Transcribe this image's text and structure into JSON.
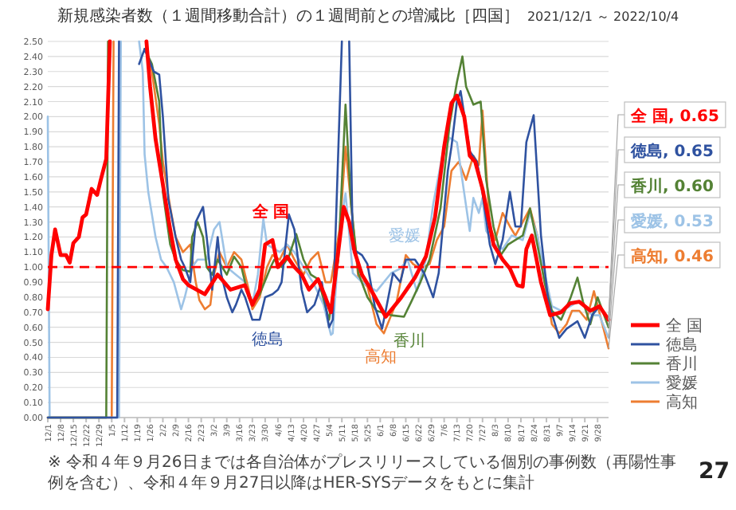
{
  "chart_data": {
    "type": "line",
    "title": "新規感染者数（１週間移動合計）の１週間前との増減比［四国］",
    "subtitle": "2021/12/1 ～ 2022/10/4",
    "xlim": [
      "2021-12-01",
      "2022-10-04"
    ],
    "ylim": [
      0,
      2.5
    ],
    "yticks": [
      {
        "value": 0,
        "label": "0.00"
      },
      {
        "value": 0.1,
        "label": "0.10"
      },
      {
        "value": 0.2,
        "label": "0.20"
      },
      {
        "value": 0.3,
        "label": "0.30"
      },
      {
        "value": 0.4,
        "label": "0.40"
      },
      {
        "value": 0.5,
        "label": "0.50"
      },
      {
        "value": 0.6,
        "label": "0.60"
      },
      {
        "value": 0.7,
        "label": "0.70"
      },
      {
        "value": 0.8,
        "label": "0.80"
      },
      {
        "value": 0.9,
        "label": "0.90"
      },
      {
        "value": 1,
        "label": "1.00"
      },
      {
        "value": 1.1,
        "label": "1.10"
      },
      {
        "value": 1.2,
        "label": "1.20"
      },
      {
        "value": 1.3,
        "label": "1.30"
      },
      {
        "value": 1.4,
        "label": "1.40"
      },
      {
        "value": 1.5,
        "label": "1.50"
      },
      {
        "value": 1.6,
        "label": "1.60"
      },
      {
        "value": 1.7,
        "label": "1.70"
      },
      {
        "value": 1.8,
        "label": "1.80"
      },
      {
        "value": 1.9,
        "label": "1.90"
      },
      {
        "value": 2,
        "label": "2.00"
      },
      {
        "value": 2.1,
        "label": "2.10"
      },
      {
        "value": 2.2,
        "label": "2.20"
      },
      {
        "value": 2.3,
        "label": "2.30"
      },
      {
        "value": 2.4,
        "label": "2.40"
      },
      {
        "value": 2.5,
        "label": "2.50"
      }
    ],
    "xticks": [
      {
        "value": "2021-12-01",
        "label": "12/1"
      },
      {
        "value": "2021-12-08",
        "label": "12/8"
      },
      {
        "value": "2021-12-15",
        "label": "12/15"
      },
      {
        "value": "2021-12-22",
        "label": "12/22"
      },
      {
        "value": "2021-12-29",
        "label": "12/29"
      },
      {
        "value": "2022-01-05",
        "label": "1/5"
      },
      {
        "value": "2022-01-12",
        "label": "1/12"
      },
      {
        "value": "2022-01-19",
        "label": "1/19"
      },
      {
        "value": "2022-01-26",
        "label": "1/26"
      },
      {
        "value": "2022-02-02",
        "label": "2/2"
      },
      {
        "value": "2022-02-09",
        "label": "2/9"
      },
      {
        "value": "2022-02-16",
        "label": "2/16"
      },
      {
        "value": "2022-02-23",
        "label": "2/23"
      },
      {
        "value": "2022-03-02",
        "label": "3/2"
      },
      {
        "value": "2022-03-09",
        "label": "3/9"
      },
      {
        "value": "2022-03-16",
        "label": "3/16"
      },
      {
        "value": "2022-03-23",
        "label": "3/23"
      },
      {
        "value": "2022-03-30",
        "label": "3/30"
      },
      {
        "value": "2022-04-06",
        "label": "4/6"
      },
      {
        "value": "2022-04-13",
        "label": "4/13"
      },
      {
        "value": "2022-04-20",
        "label": "4/20"
      },
      {
        "value": "2022-04-27",
        "label": "4/27"
      },
      {
        "value": "2022-05-04",
        "label": "5/4"
      },
      {
        "value": "2022-05-11",
        "label": "5/11"
      },
      {
        "value": "2022-05-18",
        "label": "5/18"
      },
      {
        "value": "2022-05-25",
        "label": "5/25"
      },
      {
        "value": "2022-06-01",
        "label": "6/1"
      },
      {
        "value": "2022-06-08",
        "label": "6/8"
      },
      {
        "value": "2022-06-15",
        "label": "6/15"
      },
      {
        "value": "2022-06-22",
        "label": "6/22"
      },
      {
        "value": "2022-06-29",
        "label": "6/29"
      },
      {
        "value": "2022-07-06",
        "label": "7/6"
      },
      {
        "value": "2022-07-13",
        "label": "7/13"
      },
      {
        "value": "2022-07-20",
        "label": "7/20"
      },
      {
        "value": "2022-07-27",
        "label": "7/27"
      },
      {
        "value": "2022-08-03",
        "label": "8/3"
      },
      {
        "value": "2022-08-10",
        "label": "8/10"
      },
      {
        "value": "2022-08-17",
        "label": "8/17"
      },
      {
        "value": "2022-08-24",
        "label": "8/24"
      },
      {
        "value": "2022-08-31",
        "label": "8/31"
      },
      {
        "value": "2022-09-07",
        "label": "9/7"
      },
      {
        "value": "2022-09-14",
        "label": "9/14"
      },
      {
        "value": "2022-09-21",
        "label": "9/21"
      },
      {
        "value": "2022-09-28",
        "label": "9/28"
      }
    ],
    "tick_labels": true,
    "grid": "y",
    "legend": "bottom right",
    "ref_lines": [
      {
        "axis": "y",
        "value": 1,
        "color": "#ff0000",
        "line_style": "dashed"
      }
    ],
    "series": [
      {
        "name": "全 国",
        "color": "#ff0000",
        "x": [
          "2021-12-01",
          "2021-12-03",
          "2021-12-05",
          "2021-12-08",
          "2021-12-11",
          "2021-12-13",
          "2021-12-15",
          "2021-12-18",
          "2021-12-20",
          "2021-12-22",
          "2021-12-25",
          "2021-12-28",
          "2021-12-30",
          "2022-01-02",
          "2022-01-04",
          "2022-01-14",
          "2022-01-24",
          "2022-01-26",
          "2022-01-29",
          "2022-02-02",
          "2022-02-06",
          "2022-02-09",
          "2022-02-13",
          "2022-02-16",
          "2022-02-25",
          "2022-03-04",
          "2022-03-11",
          "2022-03-19",
          "2022-03-23",
          "2022-03-27",
          "2022-03-30",
          "2022-04-03",
          "2022-04-06",
          "2022-04-11",
          "2022-04-15",
          "2022-04-19",
          "2022-04-23",
          "2022-04-28",
          "2022-05-02",
          "2022-05-05",
          "2022-05-08",
          "2022-05-12",
          "2022-05-15",
          "2022-05-18",
          "2022-05-22",
          "2022-05-26",
          "2022-06-04",
          "2022-06-12",
          "2022-06-20",
          "2022-06-26",
          "2022-07-01",
          "2022-07-06",
          "2022-07-10",
          "2022-07-13",
          "2022-07-17",
          "2022-07-20",
          "2022-07-23",
          "2022-07-27",
          "2022-08-02",
          "2022-08-07",
          "2022-08-11",
          "2022-08-15",
          "2022-08-18",
          "2022-08-20",
          "2022-08-23",
          "2022-08-28",
          "2022-09-02",
          "2022-09-08",
          "2022-09-13",
          "2022-09-18",
          "2022-09-24",
          "2022-09-29",
          "2022-10-04"
        ],
        "values": [
          0.72,
          1.08,
          1.25,
          1.08,
          1.08,
          1.03,
          1.16,
          1.2,
          1.33,
          1.35,
          1.52,
          1.48,
          1.58,
          1.72,
          2.5,
          null,
          2.5,
          2.2,
          1.85,
          1.55,
          1.25,
          1.05,
          0.92,
          0.88,
          0.82,
          0.95,
          0.85,
          0.88,
          0.75,
          0.85,
          1.15,
          1.18,
          1.0,
          1.07,
          1.0,
          0.95,
          0.85,
          0.92,
          0.8,
          0.7,
          1.0,
          1.4,
          1.3,
          1.1,
          0.95,
          0.87,
          0.67,
          0.79,
          0.93,
          1.07,
          1.33,
          1.8,
          2.09,
          2.14,
          2.0,
          1.74,
          1.7,
          1.52,
          1.15,
          1.05,
          0.99,
          0.88,
          0.87,
          1.12,
          1.21,
          0.9,
          0.68,
          0.7,
          0.76,
          0.77,
          0.71,
          0.74,
          0.65
        ]
      },
      {
        "name": "徳島",
        "color": "#2f52a0",
        "x": [
          "2021-12-01",
          "2022-01-08",
          "2022-01-09",
          "2022-01-15",
          "2022-01-20",
          "2022-01-23",
          "2022-01-28",
          "2022-01-31",
          "2022-02-02",
          "2022-02-05",
          "2022-02-09",
          "2022-02-12",
          "2022-02-14",
          "2022-02-17",
          "2022-02-20",
          "2022-02-24",
          "2022-02-26",
          "2022-03-01",
          "2022-03-04",
          "2022-03-06",
          "2022-03-09",
          "2022-03-12",
          "2022-03-14",
          "2022-03-17",
          "2022-03-19",
          "2022-03-23",
          "2022-03-27",
          "2022-03-30",
          "2022-04-03",
          "2022-04-06",
          "2022-04-08",
          "2022-04-12",
          "2022-04-15",
          "2022-04-19",
          "2022-04-22",
          "2022-04-26",
          "2022-04-30",
          "2022-05-04",
          "2022-05-06",
          "2022-05-11",
          "2022-05-13",
          "2022-05-15",
          "2022-05-17",
          "2022-05-22",
          "2022-05-25",
          "2022-05-29",
          "2022-06-02",
          "2022-06-04",
          "2022-06-08",
          "2022-06-12",
          "2022-06-15",
          "2022-06-20",
          "2022-06-25",
          "2022-06-30",
          "2022-07-03",
          "2022-07-08",
          "2022-07-10",
          "2022-07-13",
          "2022-07-15",
          "2022-07-20",
          "2022-07-24",
          "2022-07-27",
          "2022-07-31",
          "2022-08-03",
          "2022-08-07",
          "2022-08-11",
          "2022-08-14",
          "2022-08-17",
          "2022-08-20",
          "2022-08-24",
          "2022-08-28",
          "2022-09-01",
          "2022-09-07",
          "2022-09-11",
          "2022-09-17",
          "2022-09-21",
          "2022-09-25",
          "2022-09-29",
          "2022-10-04"
        ],
        "values": [
          0,
          0,
          2.5,
          null,
          2.35,
          2.45,
          2.3,
          2.28,
          2.0,
          1.45,
          1.2,
          1.05,
          1.0,
          0.9,
          1.3,
          1.4,
          1.2,
          0.85,
          1.2,
          0.95,
          0.8,
          0.7,
          0.75,
          0.85,
          0.8,
          0.65,
          0.65,
          0.8,
          0.82,
          0.85,
          0.9,
          1.35,
          1.25,
          0.85,
          0.7,
          0.75,
          0.9,
          0.6,
          0.65,
          2.5,
          null,
          2.5,
          1.12,
          1.08,
          1.02,
          0.74,
          0.59,
          0.71,
          0.96,
          0.9,
          1.05,
          1.05,
          0.96,
          0.8,
          0.96,
          1.64,
          1.8,
          2.1,
          2.17,
          1.77,
          1.7,
          1.49,
          1.15,
          1.02,
          1.18,
          1.5,
          1.27,
          1.27,
          1.83,
          2.01,
          1.21,
          0.77,
          0.53,
          0.59,
          0.64,
          0.53,
          0.68,
          0.74,
          0.65
        ]
      },
      {
        "name": "香川",
        "color": "#548235",
        "x": [
          "2021-12-01",
          "2022-01-02",
          "2022-01-03",
          "2022-01-12",
          "2022-01-23",
          "2022-01-27",
          "2022-01-31",
          "2022-02-02",
          "2022-02-06",
          "2022-02-09",
          "2022-02-13",
          "2022-02-17",
          "2022-02-18",
          "2022-02-21",
          "2022-02-24",
          "2022-02-26",
          "2022-03-01",
          "2022-03-04",
          "2022-03-09",
          "2022-03-13",
          "2022-03-17",
          "2022-03-21",
          "2022-03-23",
          "2022-03-27",
          "2022-04-02",
          "2022-04-04",
          "2022-04-08",
          "2022-04-12",
          "2022-04-16",
          "2022-04-20",
          "2022-04-24",
          "2022-04-28",
          "2022-05-04",
          "2022-05-09",
          "2022-05-13",
          "2022-05-16",
          "2022-05-20",
          "2022-05-25",
          "2022-05-30",
          "2022-06-07",
          "2022-06-14",
          "2022-06-18",
          "2022-06-23",
          "2022-06-28",
          "2022-07-04",
          "2022-07-09",
          "2022-07-13",
          "2022-07-16",
          "2022-07-18",
          "2022-07-22",
          "2022-07-26",
          "2022-07-29",
          "2022-08-02",
          "2022-08-06",
          "2022-08-10",
          "2022-08-14",
          "2022-08-18",
          "2022-08-22",
          "2022-08-26",
          "2022-08-30",
          "2022-09-03",
          "2022-09-08",
          "2022-09-13",
          "2022-09-17",
          "2022-09-20",
          "2022-09-24",
          "2022-09-28",
          "2022-10-04"
        ],
        "values": [
          0,
          0,
          2.5,
          null,
          2.45,
          2.35,
          2.1,
          1.5,
          1.15,
          1.05,
          0.98,
          0.97,
          1.2,
          1.3,
          1.2,
          1.0,
          0.95,
          1.05,
          0.95,
          1.07,
          1.0,
          0.8,
          0.75,
          0.82,
          1.0,
          1.05,
          1.0,
          1.07,
          1.22,
          1.05,
          0.95,
          0.92,
          0.65,
          1.05,
          2.08,
          1.42,
          0.96,
          0.8,
          0.71,
          0.68,
          0.67,
          0.77,
          0.9,
          1.05,
          1.39,
          1.95,
          2.23,
          2.4,
          2.2,
          2.08,
          2.1,
          1.58,
          1.27,
          1.08,
          1.15,
          1.18,
          1.21,
          1.39,
          1.15,
          0.9,
          0.71,
          0.65,
          0.79,
          0.93,
          0.77,
          0.62,
          0.8,
          0.6
        ]
      },
      {
        "name": "愛媛",
        "color": "#9dc3e6",
        "x": [
          "2021-12-01",
          "2021-12-02",
          "2022-01-09",
          "2022-01-10",
          "2022-01-15",
          "2022-01-20",
          "2022-01-22",
          "2022-01-23",
          "2022-01-25",
          "2022-01-27",
          "2022-01-29",
          "2022-02-01",
          "2022-02-04",
          "2022-02-08",
          "2022-02-12",
          "2022-02-14",
          "2022-02-18",
          "2022-02-21",
          "2022-02-26",
          "2022-03-02",
          "2022-03-05",
          "2022-03-09",
          "2022-03-14",
          "2022-03-19",
          "2022-03-23",
          "2022-03-26",
          "2022-03-29",
          "2022-03-31",
          "2022-04-07",
          "2022-04-11",
          "2022-04-15",
          "2022-04-20",
          "2022-04-26",
          "2022-05-01",
          "2022-05-05",
          "2022-05-06",
          "2022-05-10",
          "2022-05-13",
          "2022-05-17",
          "2022-05-22",
          "2022-05-30",
          "2022-06-07",
          "2022-06-12",
          "2022-06-16",
          "2022-06-21",
          "2022-06-26",
          "2022-06-30",
          "2022-07-05",
          "2022-07-09",
          "2022-07-13",
          "2022-07-17",
          "2022-07-20",
          "2022-07-22",
          "2022-07-25",
          "2022-07-27",
          "2022-07-29",
          "2022-08-03",
          "2022-08-07",
          "2022-08-12",
          "2022-08-18",
          "2022-08-22",
          "2022-08-26",
          "2022-08-30",
          "2022-09-03",
          "2022-09-08",
          "2022-09-13",
          "2022-09-17",
          "2022-09-21",
          "2022-09-25",
          "2022-09-29",
          "2022-10-04"
        ],
        "values": [
          2.0,
          0,
          0,
          2.5,
          null,
          2.5,
          2.3,
          1.75,
          1.5,
          1.35,
          1.2,
          1.05,
          1.0,
          0.9,
          0.72,
          0.8,
          1.0,
          1.05,
          1.05,
          1.25,
          1.3,
          1.0,
          0.95,
          0.9,
          0.75,
          0.95,
          1.32,
          1.15,
          1.1,
          1.15,
          1.1,
          1.0,
          0.88,
          0.75,
          0.55,
          0.56,
          1.27,
          1.49,
          0.96,
          0.9,
          0.84,
          0.96,
          0.99,
          1.05,
          0.84,
          1.05,
          1.42,
          1.74,
          1.86,
          1.83,
          1.49,
          1.24,
          1.46,
          1.36,
          1.46,
          1.24,
          1.15,
          1.12,
          1.21,
          1.18,
          1.36,
          1.21,
          0.96,
          0.74,
          0.71,
          0.74,
          0.77,
          0.74,
          0.68,
          0.68,
          0.53
        ]
      },
      {
        "name": "高知",
        "color": "#ed7d31",
        "x": [
          "2021-12-01",
          "2022-01-05",
          "2022-01-06",
          "2022-01-15",
          "2022-01-24",
          "2022-01-27",
          "2022-01-31",
          "2022-02-02",
          "2022-02-06",
          "2022-02-09",
          "2022-02-13",
          "2022-02-17",
          "2022-02-20",
          "2022-02-22",
          "2022-02-25",
          "2022-02-28",
          "2022-03-02",
          "2022-03-05",
          "2022-03-09",
          "2022-03-13",
          "2022-03-17",
          "2022-03-21",
          "2022-03-23",
          "2022-03-27",
          "2022-03-31",
          "2022-04-03",
          "2022-04-07",
          "2022-04-11",
          "2022-04-15",
          "2022-04-20",
          "2022-04-24",
          "2022-04-28",
          "2022-05-02",
          "2022-05-05",
          "2022-05-10",
          "2022-05-13",
          "2022-05-16",
          "2022-05-20",
          "2022-05-25",
          "2022-05-30",
          "2022-06-03",
          "2022-06-10",
          "2022-06-15",
          "2022-06-19",
          "2022-06-23",
          "2022-06-28",
          "2022-07-02",
          "2022-07-06",
          "2022-07-10",
          "2022-07-14",
          "2022-07-18",
          "2022-07-22",
          "2022-07-25",
          "2022-07-27",
          "2022-07-31",
          "2022-08-03",
          "2022-08-07",
          "2022-08-11",
          "2022-08-14",
          "2022-08-18",
          "2022-08-22",
          "2022-08-26",
          "2022-08-30",
          "2022-09-03",
          "2022-09-07",
          "2022-09-11",
          "2022-09-14",
          "2022-09-18",
          "2022-09-22",
          "2022-09-26",
          "2022-09-30",
          "2022-10-04"
        ],
        "values": [
          0,
          0,
          2.5,
          null,
          2.45,
          2.3,
          1.95,
          1.7,
          1.4,
          1.2,
          1.1,
          1.15,
          0.9,
          0.78,
          0.72,
          0.75,
          0.95,
          1.1,
          1.0,
          1.1,
          1.05,
          0.85,
          0.72,
          0.8,
          1.0,
          1.08,
          1.05,
          1.15,
          1.05,
          0.95,
          1.05,
          1.1,
          0.9,
          0.9,
          1.27,
          1.8,
          1.42,
          0.93,
          0.87,
          0.62,
          0.56,
          0.77,
          1.08,
          1.02,
          0.99,
          1.02,
          1.18,
          1.27,
          1.64,
          1.7,
          1.58,
          1.74,
          1.68,
          2.04,
          1.27,
          1.18,
          1.36,
          1.27,
          1.21,
          1.3,
          1.39,
          1.21,
          0.9,
          0.62,
          0.56,
          0.62,
          0.71,
          0.71,
          0.65,
          0.84,
          0.65,
          0.46
        ]
      }
    ],
    "annotations": [
      "全 国",
      "徳島",
      "愛媛",
      "香川",
      "高知",
      "全 国, 0.65",
      "徳島, 0.65",
      "香川, 0.60",
      "愛媛, 0.53",
      "高知, 0.46",
      "27",
      "※ 令和４年９月26日までは各自治体がプレスリリースしている個別の事例数（再陽性事例を含む）、令和４年９月27日以降はHER-SYSデータをもとに集計"
    ]
  }
}
